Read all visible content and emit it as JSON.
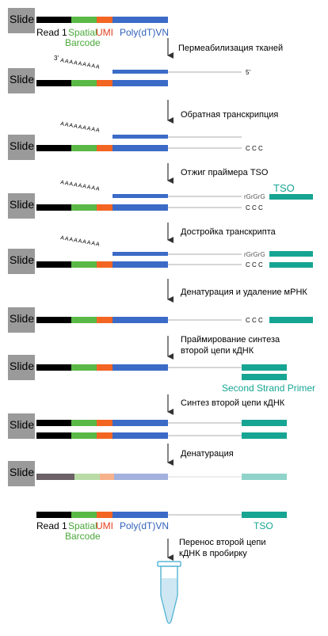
{
  "labels": {
    "slide": "Slide",
    "read1": "Read 1",
    "spatial": "Spatial",
    "barcode": "Barcode",
    "umi": "UMI",
    "polydtvn": "Poly(dT)VN",
    "tso": "TSO",
    "second_strand_primer": "Second Strand Primer",
    "three_prime": "3'",
    "five_prime": "5'",
    "polyA": "AAAAAAAAA",
    "ccc": "C C C",
    "rgrgrg": "rGrGrG"
  },
  "steps": [
    "Пермеабилизация тканей",
    "Обратная транскрипция",
    "Отжиг праймера TSO",
    "Дострoйка транскрипта",
    "Денатурация и удаление мРНК",
    "Праймирование синтеза",
    "второй цепи кДНК",
    "Синтез второй цепи кДНК",
    "Денатурация",
    "Перенос второй цепи",
    "кДНК в пробирку"
  ],
  "colors": {
    "read1": "#000000",
    "spatial_barcode": "#5ab946",
    "umi": "#f26522",
    "polydt": "#3b6bc7",
    "tso": "#17a593",
    "slide_box": "#9a9a9a",
    "line": "#bdbdbd",
    "spatial_text": "#4aa83a",
    "umi_text": "#e2401f",
    "polydt_text": "#2f5fb8",
    "tso_text": "#17a593",
    "faded_read1": "#6b6166",
    "faded_spatial": "#b9dca6",
    "faded_umi": "#f7b18b",
    "faded_polydt": "#a3b1dd",
    "faded_tso": "#8fd3ca",
    "tube_liquid": "#cfe7f2",
    "tube_cap": "#5bb7d6"
  }
}
